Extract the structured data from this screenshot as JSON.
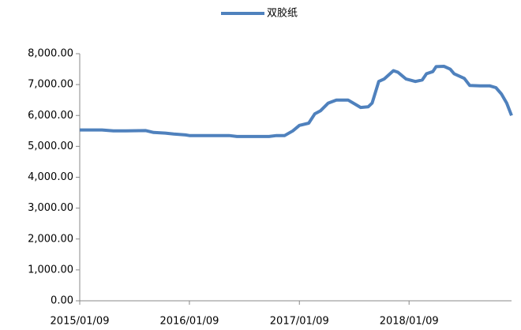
{
  "chart_data": {
    "type": "line",
    "x": [
      "2015/01/09",
      "2015/03/24",
      "2015/05/01",
      "2015/06/12",
      "2015/08/17",
      "2015/09/12",
      "2015/10/21",
      "2015/11/18",
      "2015/12/27",
      "2016/01/09",
      "2016/05/20",
      "2016/06/15",
      "2016/09/30",
      "2016/10/25",
      "2016/11/21",
      "2016/12/18",
      "2017/01/09",
      "2017/02/09",
      "2017/03/01",
      "2017/03/20",
      "2017/04/15",
      "2017/05/12",
      "2017/06/20",
      "2017/08/01",
      "2017/08/26",
      "2017/09/08",
      "2017/09/30",
      "2017/10/18",
      "2017/11/18",
      "2017/12/03",
      "2017/12/30",
      "2018/01/30",
      "2018/02/22",
      "2018/03/08",
      "2018/03/29",
      "2018/04/09",
      "2018/05/05",
      "2018/05/26",
      "2018/06/08",
      "2018/07/12",
      "2018/07/30",
      "2018/09/03",
      "2018/10/04",
      "2018/10/25",
      "2018/11/12",
      "2018/11/30",
      "2018/12/16"
    ],
    "series": [
      {
        "name": "双胶纸",
        "color": "#4f81bd",
        "values": [
          5530,
          5530,
          5500,
          5500,
          5510,
          5450,
          5430,
          5400,
          5370,
          5350,
          5350,
          5320,
          5320,
          5350,
          5350,
          5500,
          5680,
          5750,
          6050,
          6150,
          6400,
          6500,
          6500,
          6260,
          6280,
          6400,
          7100,
          7180,
          7450,
          7400,
          7180,
          7100,
          7150,
          7350,
          7420,
          7580,
          7590,
          7500,
          7350,
          7200,
          6970,
          6960,
          6960,
          6900,
          6700,
          6400,
          6000
        ]
      }
    ],
    "xlim": [
      "2015/01/09",
      "2018/12/16"
    ],
    "xticks": [
      "2015/01/09",
      "2016/01/09",
      "2017/01/09",
      "2018/01/09"
    ],
    "ylim": [
      0,
      8000
    ],
    "yticks": [
      {
        "value": 0,
        "label": "0.00"
      },
      {
        "value": 1000,
        "label": "1,000.00"
      },
      {
        "value": 2000,
        "label": "2,000.00"
      },
      {
        "value": 3000,
        "label": "3,000.00"
      },
      {
        "value": 4000,
        "label": "4,000.00"
      },
      {
        "value": 5000,
        "label": "5,000.00"
      },
      {
        "value": 6000,
        "label": "6,000.00"
      },
      {
        "value": 7000,
        "label": "7,000.00"
      },
      {
        "value": 8000,
        "label": "8,000.00"
      }
    ],
    "legend": "top"
  }
}
